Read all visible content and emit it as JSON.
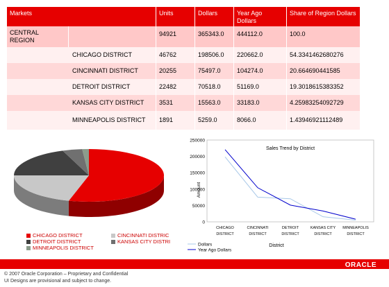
{
  "table": {
    "headers": [
      "Markets",
      "Units",
      "Dollars",
      "Year Ago Dollars",
      "Share of Region Dollars"
    ],
    "rows": [
      {
        "market": "CENTRAL REGION",
        "district": "",
        "units": "94921",
        "dollars": "365343.0",
        "yago": "444112.0",
        "share": "100.0"
      },
      {
        "market": "",
        "district": "CHICAGO DISTRICT",
        "units": "46762",
        "dollars": "198506.0",
        "yago": "220662.0",
        "share": "54.3341462680276"
      },
      {
        "market": "",
        "district": "CINCINNATI DISTRICT",
        "units": "20255",
        "dollars": "75497.0",
        "yago": "104274.0",
        "share": "20.664690441585"
      },
      {
        "market": "",
        "district": "DETROIT DISTRICT",
        "units": "22482",
        "dollars": "70518.0",
        "yago": "51169.0",
        "share": "19.3018615383352"
      },
      {
        "market": "",
        "district": "KANSAS CITY DISTRICT",
        "units": "3531",
        "dollars": "15563.0",
        "yago": "33183.0",
        "share": "4.25983254092729"
      },
      {
        "market": "",
        "district": "MINNEAPOLIS DISTRICT",
        "units": "1891",
        "dollars": "5259.0",
        "yago": "8066.0",
        "share": "1.43946921112489"
      }
    ]
  },
  "pie_legend": [
    {
      "label": "CHICAGO DISTRICT",
      "color": "#e60000"
    },
    {
      "label": "CINCINNATI DISTRIC",
      "color": "#c8c8c8"
    },
    {
      "label": "DETROIT DISTRICT",
      "color": "#404040"
    },
    {
      "label": "KANSAS CITY DISTRI",
      "color": "#707070"
    },
    {
      "label": "MINNEAPOLIS DISTRICT",
      "color": "#8c9c8c"
    }
  ],
  "chart_data": [
    {
      "type": "pie",
      "categories": [
        "CHICAGO DISTRICT",
        "CINCINNATI DISTRIC",
        "DETROIT DISTRICT",
        "KANSAS CITY DISTRI",
        "MINNEAPOLIS DISTRICT"
      ],
      "values": [
        198506,
        75497,
        70518,
        15563,
        5259
      ],
      "colors": [
        "#e60000",
        "#c8c8c8",
        "#404040",
        "#707070",
        "#8c9c8c"
      ],
      "style": "3d"
    },
    {
      "type": "line",
      "title": "Sales Trend by District",
      "xlabel": "District",
      "ylabel": "Amount",
      "categories": [
        "CHICAGO DISTRICT",
        "CINCINNATI DISTRICT",
        "DETROIT DISTRICT",
        "KANSAS CITY DISTRICT",
        "MINNEAPOLIS DISTRICT"
      ],
      "category_lines": [
        [
          "CHICAGO",
          "DISTRICT"
        ],
        [
          "CINCINNATI",
          "DISTRICT"
        ],
        [
          "DETROIT",
          "DISTRICT"
        ],
        [
          "KANSAS CITY",
          "DISTRICT"
        ],
        [
          "MINNEAPOLIS",
          "DISTRICT"
        ]
      ],
      "ylim": [
        0,
        250000
      ],
      "yticks": [
        0,
        50000,
        100000,
        150000,
        200000,
        250000
      ],
      "series": [
        {
          "name": "Dollars",
          "values": [
            198506,
            75497,
            70518,
            15563,
            5259
          ],
          "color": "#a8c8e8"
        },
        {
          "name": "Year Ago Dollars",
          "values": [
            220662,
            104274,
            51169,
            33183,
            8066
          ],
          "color": "#0000cc"
        }
      ],
      "legend": "bottom-left"
    }
  ],
  "footer": {
    "logo": "ORACLE",
    "copyright": "© 2007 Oracle Corporation – Proprietary and Confidential",
    "note": "UI Designs are provisional and subject to change."
  }
}
